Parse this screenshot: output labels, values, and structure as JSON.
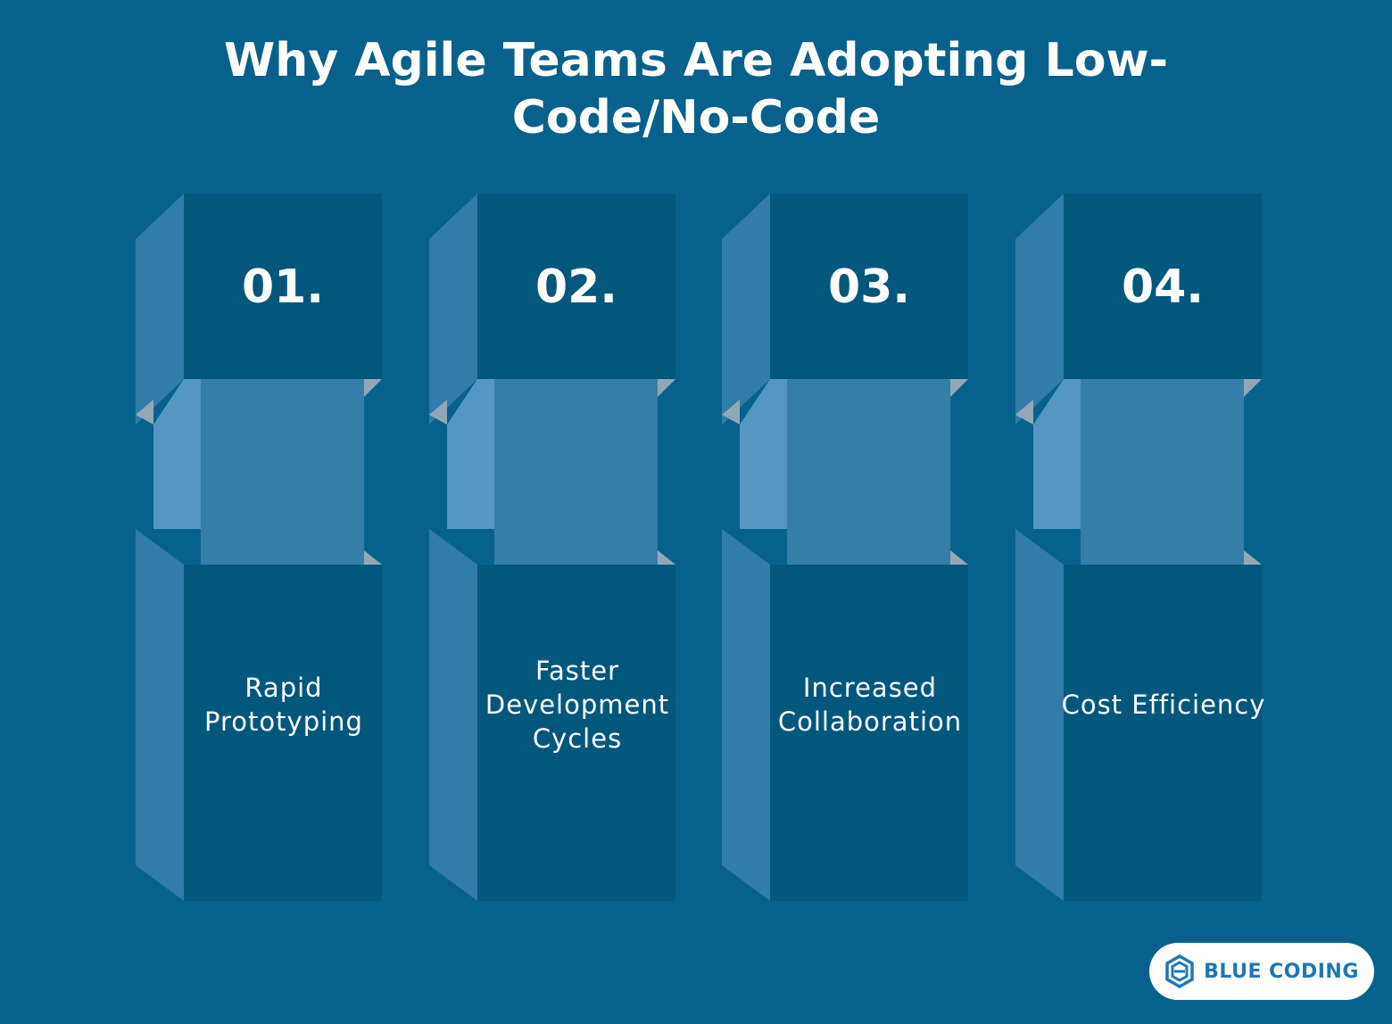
{
  "title": "Why Agile Teams Are Adopting Low-Code/No-Code",
  "items": [
    {
      "number": "01.",
      "label": "Rapid Prototyping"
    },
    {
      "number": "02.",
      "label": "Faster Development Cycles"
    },
    {
      "number": "03.",
      "label": "Increased Collaboration"
    },
    {
      "number": "04.",
      "label": "Cost Efficiency"
    }
  ],
  "logo": {
    "text": "BLUE CODING",
    "icon": "hexagon-logo-icon"
  },
  "colors": {
    "background": "#08618d",
    "block_front": "#03577d",
    "block_side": "#327ca9",
    "connector_front": "#357ea9",
    "connector_side": "#5497c4",
    "logo_text": "#1c78b4"
  }
}
